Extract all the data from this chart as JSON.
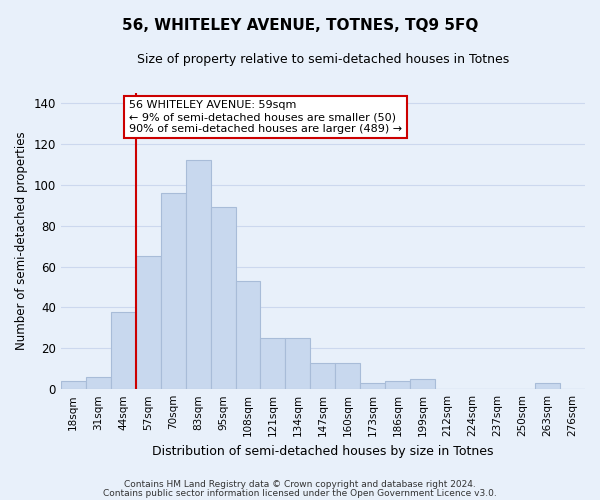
{
  "title": "56, WHITELEY AVENUE, TOTNES, TQ9 5FQ",
  "subtitle": "Size of property relative to semi-detached houses in Totnes",
  "xlabel": "Distribution of semi-detached houses by size in Totnes",
  "ylabel": "Number of semi-detached properties",
  "bar_labels": [
    "18sqm",
    "31sqm",
    "44sqm",
    "57sqm",
    "70sqm",
    "83sqm",
    "95sqm",
    "108sqm",
    "121sqm",
    "134sqm",
    "147sqm",
    "160sqm",
    "173sqm",
    "186sqm",
    "199sqm",
    "212sqm",
    "224sqm",
    "237sqm",
    "250sqm",
    "263sqm",
    "276sqm"
  ],
  "bar_heights": [
    4,
    6,
    38,
    65,
    96,
    112,
    89,
    53,
    25,
    25,
    13,
    13,
    3,
    4,
    5,
    0,
    0,
    0,
    0,
    3,
    0
  ],
  "bar_color": "#c8d8ee",
  "bar_edge_color": "#a8bcd8",
  "vline_index": 3,
  "annotation_line1": "56 WHITELEY AVENUE: 59sqm",
  "annotation_line2": "← 9% of semi-detached houses are smaller (50)",
  "annotation_line3": "90% of semi-detached houses are larger (489) →",
  "annotation_box_color": "#ffffff",
  "annotation_box_edge": "#cc0000",
  "vline_color": "#cc0000",
  "ylim": [
    0,
    145
  ],
  "yticks": [
    0,
    20,
    40,
    60,
    80,
    100,
    120,
    140
  ],
  "grid_color": "#ccd8ee",
  "bg_color": "#e8f0fa",
  "footer1": "Contains HM Land Registry data © Crown copyright and database right 2024.",
  "footer2": "Contains public sector information licensed under the Open Government Licence v3.0."
}
